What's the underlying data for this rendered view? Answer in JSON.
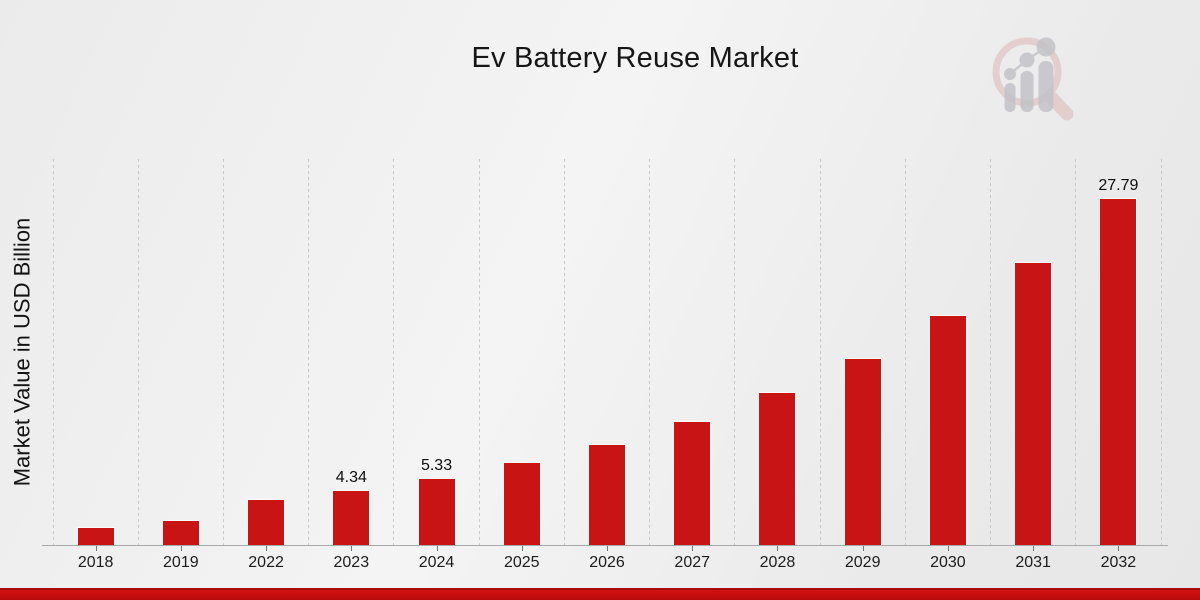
{
  "title": "Ev Battery Reuse Market",
  "logo": {
    "name": "market-research-magnifier-logo"
  },
  "chart_data": {
    "type": "bar",
    "title": "Ev Battery Reuse Market",
    "xlabel": "",
    "ylabel": "Market Value in USD Billion",
    "categories": [
      "2018",
      "2019",
      "2022",
      "2023",
      "2024",
      "2025",
      "2026",
      "2027",
      "2028",
      "2029",
      "2030",
      "2031",
      "2032"
    ],
    "values": [
      1.4,
      1.9,
      3.6,
      4.34,
      5.33,
      6.55,
      8.05,
      9.9,
      12.17,
      14.96,
      18.39,
      22.61,
      27.79
    ],
    "bar_labels": [
      "",
      "",
      "",
      "4.34",
      "5.33",
      "",
      "",
      "",
      "",
      "",
      "",
      "",
      "27.79"
    ],
    "ylim": [
      0,
      31
    ],
    "grid": "vertical-dashed",
    "legend": "none",
    "colors": {
      "bar": "#c81414",
      "grid_line": "#c9c9c9",
      "axis_line": "#a9a9a9",
      "value_label_text": "#0d0d0d",
      "tick_label_text": "#1c1c1c",
      "background_start": "#ebebeb",
      "background_end": "#e7e7e7",
      "footer_band": "#c40d0d",
      "logo_ring": "#dcb2b2",
      "logo_bars": "#c3c3c8"
    }
  }
}
